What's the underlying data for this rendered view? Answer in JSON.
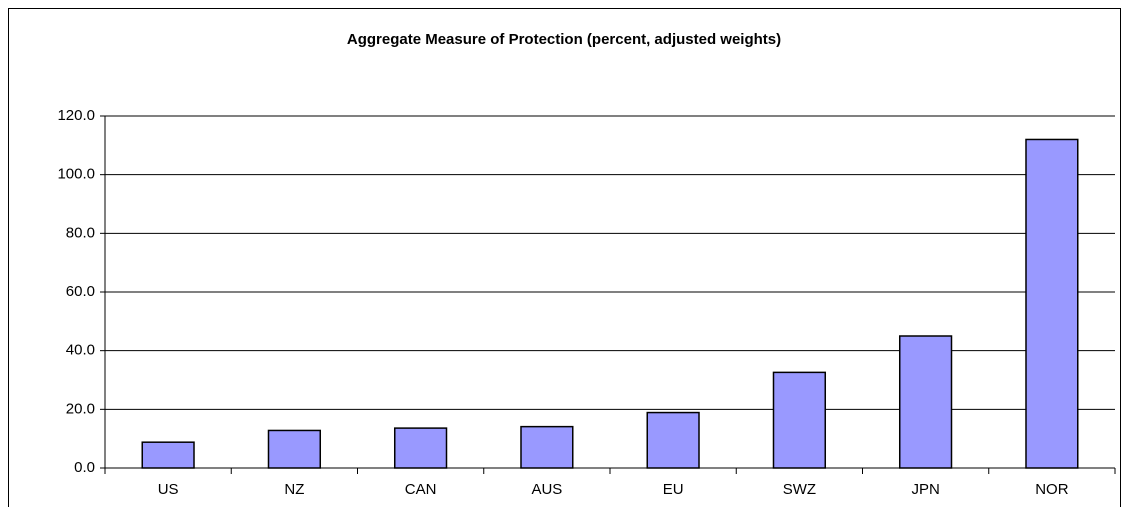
{
  "chart_data": {
    "type": "bar",
    "title": "Aggregate Measure of Protection (percent, adjusted weights)",
    "categories": [
      "US",
      "NZ",
      "CAN",
      "AUS",
      "EU",
      "SWZ",
      "JPN",
      "NOR"
    ],
    "values": [
      8.8,
      12.8,
      13.6,
      14.1,
      18.9,
      32.6,
      45.0,
      112.0
    ],
    "color": "#9999ff",
    "ylim": [
      0,
      120
    ],
    "yticks": [
      {
        "value": 0,
        "label": "0.0"
      },
      {
        "value": 20,
        "label": "20.0"
      },
      {
        "value": 40,
        "label": "40.0"
      },
      {
        "value": 60,
        "label": "60.0"
      },
      {
        "value": 80,
        "label": "80.0"
      },
      {
        "value": 100,
        "label": "100.0"
      },
      {
        "value": 120,
        "label": "120.0"
      }
    ],
    "grid": true
  }
}
